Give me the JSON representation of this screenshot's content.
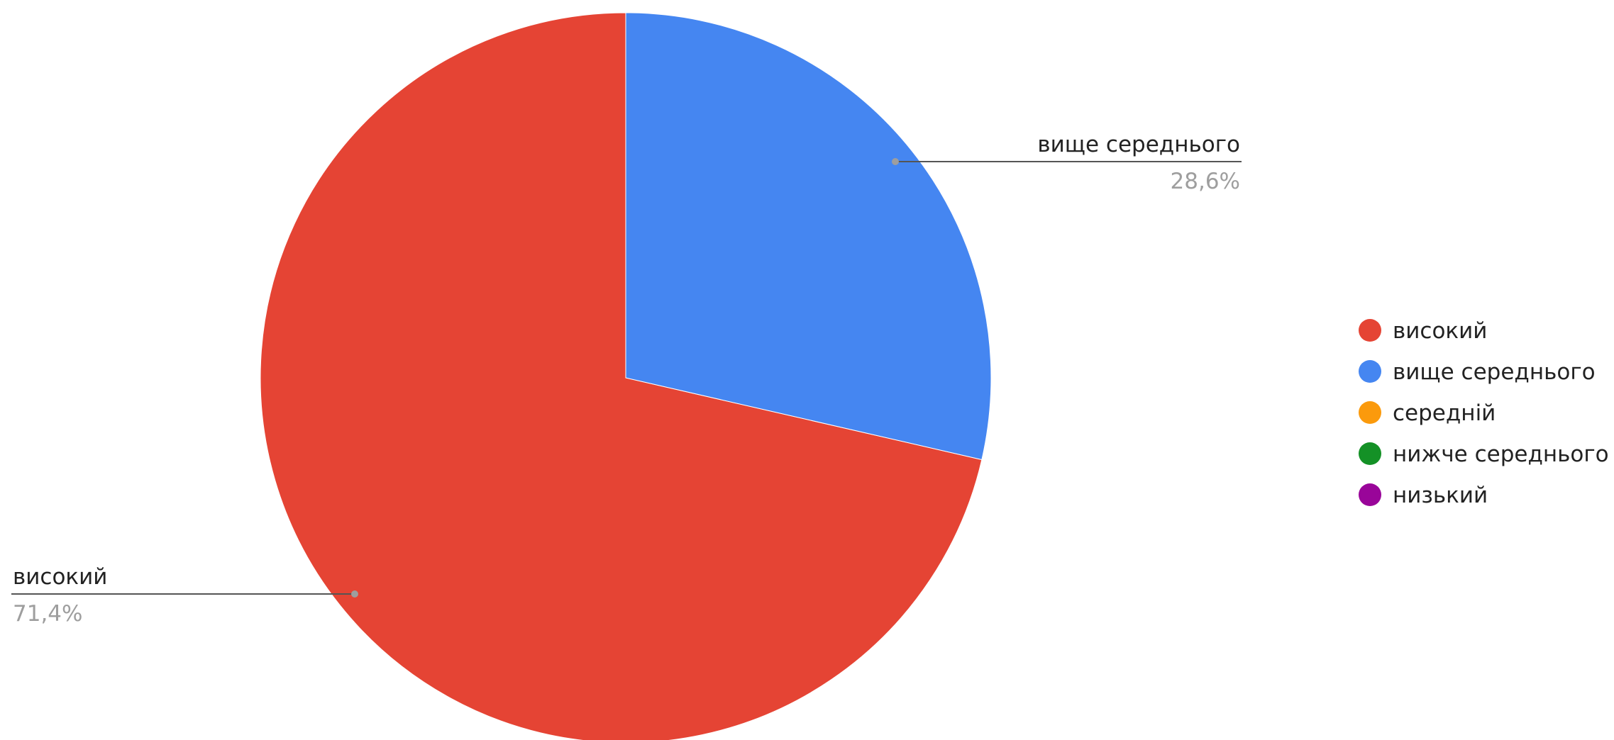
{
  "chart_data": {
    "type": "pie",
    "categories": [
      "високий",
      "вище середнього",
      "середній",
      "нижче середнього",
      "низький"
    ],
    "values": [
      71.4,
      28.6,
      0,
      0,
      0
    ],
    "colors": [
      "#e54434",
      "#4586f1",
      "#fb9a0c",
      "#149126",
      "#990599"
    ],
    "slice_labels": [
      {
        "name": "високий",
        "percent": "71,4%"
      },
      {
        "name": "вище середнього",
        "percent": "28,6%"
      }
    ],
    "legend": {
      "position": "right",
      "items": [
        "високий",
        "вище середнього",
        "середній",
        "нижче середнього",
        "низький"
      ]
    }
  }
}
